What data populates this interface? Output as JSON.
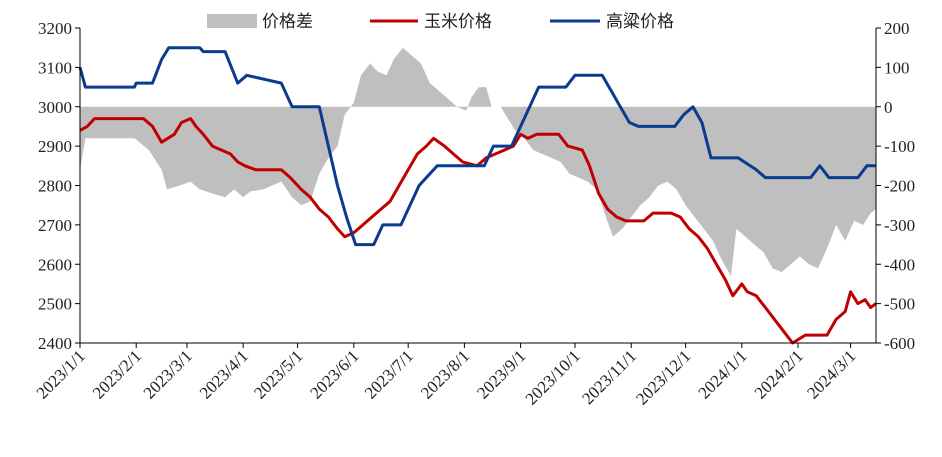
{
  "chart_data": {
    "type": "line",
    "legend_position": "top",
    "grid": false,
    "colors": {
      "spread": "#bfbfbf",
      "corn": "#c00000",
      "sorghum": "#0a3b8c"
    },
    "x_ticks": [
      "2023/1/1",
      "2023/2/1",
      "2023/3/1",
      "2023/4/1",
      "2023/5/1",
      "2023/6/1",
      "2023/7/1",
      "2023/8/1",
      "2023/9/1",
      "2023/10/1",
      "2023/11/1",
      "2023/12/1",
      "2024/1/1",
      "2024/2/1",
      "2024/3/1"
    ],
    "x_range": [
      "2023-01-01",
      "2024-03-15"
    ],
    "y_left": {
      "min": 2400,
      "max": 3200,
      "ticks": [
        2400,
        2500,
        2600,
        2700,
        2800,
        2900,
        3000,
        3100,
        3200
      ]
    },
    "y_right": {
      "min": -600,
      "max": 200,
      "ticks": [
        -600,
        -500,
        -400,
        -300,
        -200,
        -100,
        0,
        100,
        200
      ]
    },
    "series": [
      {
        "name": "价格差",
        "kind": "area",
        "axis": "right",
        "color": "#bfbfbf",
        "points": [
          [
            "2023-01-01",
            -160
          ],
          [
            "2023-01-04",
            -80
          ],
          [
            "2023-01-10",
            -80
          ],
          [
            "2023-01-31",
            -80
          ],
          [
            "2023-02-08",
            -110
          ],
          [
            "2023-02-15",
            -160
          ],
          [
            "2023-02-18",
            -210
          ],
          [
            "2023-02-25",
            -200
          ],
          [
            "2023-03-03",
            -190
          ],
          [
            "2023-03-08",
            -210
          ],
          [
            "2023-03-15",
            -220
          ],
          [
            "2023-03-22",
            -230
          ],
          [
            "2023-03-27",
            -210
          ],
          [
            "2023-04-01",
            -230
          ],
          [
            "2023-04-05",
            -215
          ],
          [
            "2023-04-12",
            -210
          ],
          [
            "2023-04-22",
            -190
          ],
          [
            "2023-04-28",
            -230
          ],
          [
            "2023-05-03",
            -250
          ],
          [
            "2023-05-08",
            -240
          ],
          [
            "2023-05-13",
            -170
          ],
          [
            "2023-05-18",
            -130
          ],
          [
            "2023-05-23",
            -100
          ],
          [
            "2023-05-27",
            -20
          ],
          [
            "2023-06-01",
            10
          ],
          [
            "2023-06-05",
            80
          ],
          [
            "2023-06-10",
            110
          ],
          [
            "2023-06-14",
            90
          ],
          [
            "2023-06-19",
            80
          ],
          [
            "2023-06-23",
            120
          ],
          [
            "2023-06-28",
            150
          ],
          [
            "2023-07-03",
            130
          ],
          [
            "2023-07-08",
            110
          ],
          [
            "2023-07-13",
            60
          ],
          [
            "2023-07-18",
            40
          ],
          [
            "2023-07-23",
            20
          ],
          [
            "2023-07-28",
            0
          ],
          [
            "2023-08-02",
            -10
          ],
          [
            "2023-08-05",
            25
          ],
          [
            "2023-08-09",
            50
          ],
          [
            "2023-08-13",
            50
          ],
          [
            "2023-08-16",
            0
          ],
          [
            "2023-08-21",
            0
          ],
          [
            "2023-08-25",
            -30
          ],
          [
            "2023-08-29",
            -60
          ],
          [
            "2023-09-03",
            -80
          ],
          [
            "2023-09-08",
            -110
          ],
          [
            "2023-09-13",
            -120
          ],
          [
            "2023-09-18",
            -130
          ],
          [
            "2023-09-23",
            -140
          ],
          [
            "2023-09-28",
            -170
          ],
          [
            "2023-10-03",
            -180
          ],
          [
            "2023-10-08",
            -190
          ],
          [
            "2023-10-13",
            -210
          ],
          [
            "2023-10-18",
            -280
          ],
          [
            "2023-10-22",
            -330
          ],
          [
            "2023-10-27",
            -310
          ],
          [
            "2023-11-01",
            -280
          ],
          [
            "2023-11-06",
            -250
          ],
          [
            "2023-11-11",
            -230
          ],
          [
            "2023-11-16",
            -200
          ],
          [
            "2023-11-21",
            -190
          ],
          [
            "2023-11-26",
            -210
          ],
          [
            "2023-12-01",
            -250
          ],
          [
            "2023-12-06",
            -280
          ],
          [
            "2023-12-11",
            -310
          ],
          [
            "2023-12-16",
            -340
          ],
          [
            "2023-12-21",
            -390
          ],
          [
            "2023-12-26",
            -430
          ],
          [
            "2023-12-29",
            -310
          ],
          [
            "2024-01-03",
            -330
          ],
          [
            "2024-01-08",
            -350
          ],
          [
            "2024-01-13",
            -370
          ],
          [
            "2024-01-18",
            -410
          ],
          [
            "2024-01-23",
            -420
          ],
          [
            "2024-01-28",
            -400
          ],
          [
            "2024-02-02",
            -380
          ],
          [
            "2024-02-07",
            -400
          ],
          [
            "2024-02-12",
            -410
          ],
          [
            "2024-02-17",
            -360
          ],
          [
            "2024-02-22",
            -300
          ],
          [
            "2024-02-27",
            -340
          ],
          [
            "2024-03-03",
            -290
          ],
          [
            "2024-03-08",
            -300
          ],
          [
            "2024-03-12",
            -270
          ],
          [
            "2024-03-15",
            -260
          ]
        ]
      },
      {
        "name": "玉米价格",
        "kind": "line",
        "axis": "left",
        "color": "#c00000",
        "points": [
          [
            "2023-01-01",
            2940
          ],
          [
            "2023-01-05",
            2950
          ],
          [
            "2023-01-09",
            2970
          ],
          [
            "2023-02-05",
            2970
          ],
          [
            "2023-02-10",
            2950
          ],
          [
            "2023-02-15",
            2910
          ],
          [
            "2023-02-22",
            2930
          ],
          [
            "2023-02-26",
            2960
          ],
          [
            "2023-03-03",
            2970
          ],
          [
            "2023-03-06",
            2950
          ],
          [
            "2023-03-10",
            2930
          ],
          [
            "2023-03-15",
            2900
          ],
          [
            "2023-03-25",
            2880
          ],
          [
            "2023-03-29",
            2860
          ],
          [
            "2023-04-02",
            2850
          ],
          [
            "2023-04-08",
            2840
          ],
          [
            "2023-04-22",
            2840
          ],
          [
            "2023-04-27",
            2820
          ],
          [
            "2023-05-03",
            2790
          ],
          [
            "2023-05-08",
            2770
          ],
          [
            "2023-05-13",
            2740
          ],
          [
            "2023-05-18",
            2720
          ],
          [
            "2023-05-23",
            2690
          ],
          [
            "2023-05-27",
            2670
          ],
          [
            "2023-06-01",
            2680
          ],
          [
            "2023-06-06",
            2700
          ],
          [
            "2023-06-11",
            2720
          ],
          [
            "2023-06-16",
            2740
          ],
          [
            "2023-06-21",
            2760
          ],
          [
            "2023-06-26",
            2800
          ],
          [
            "2023-07-01",
            2840
          ],
          [
            "2023-07-06",
            2880
          ],
          [
            "2023-07-11",
            2900
          ],
          [
            "2023-07-15",
            2920
          ],
          [
            "2023-07-21",
            2900
          ],
          [
            "2023-07-26",
            2880
          ],
          [
            "2023-07-31",
            2860
          ],
          [
            "2023-08-08",
            2850
          ],
          [
            "2023-08-13",
            2870
          ],
          [
            "2023-08-18",
            2880
          ],
          [
            "2023-08-23",
            2890
          ],
          [
            "2023-08-28",
            2900
          ],
          [
            "2023-09-01",
            2930
          ],
          [
            "2023-09-05",
            2920
          ],
          [
            "2023-09-10",
            2930
          ],
          [
            "2023-09-22",
            2930
          ],
          [
            "2023-09-27",
            2900
          ],
          [
            "2023-10-05",
            2890
          ],
          [
            "2023-10-09",
            2850
          ],
          [
            "2023-10-14",
            2780
          ],
          [
            "2023-10-19",
            2740
          ],
          [
            "2023-10-24",
            2720
          ],
          [
            "2023-10-29",
            2710
          ],
          [
            "2023-11-08",
            2710
          ],
          [
            "2023-11-13",
            2730
          ],
          [
            "2023-11-23",
            2730
          ],
          [
            "2023-11-28",
            2720
          ],
          [
            "2023-12-03",
            2690
          ],
          [
            "2023-12-08",
            2670
          ],
          [
            "2023-12-13",
            2640
          ],
          [
            "2023-12-18",
            2600
          ],
          [
            "2023-12-23",
            2560
          ],
          [
            "2023-12-27",
            2520
          ],
          [
            "2024-01-01",
            2550
          ],
          [
            "2024-01-04",
            2530
          ],
          [
            "2024-01-09",
            2520
          ],
          [
            "2024-01-14",
            2490
          ],
          [
            "2024-01-19",
            2460
          ],
          [
            "2024-01-24",
            2430
          ],
          [
            "2024-01-29",
            2400
          ],
          [
            "2024-02-05",
            2420
          ],
          [
            "2024-02-17",
            2420
          ],
          [
            "2024-02-22",
            2460
          ],
          [
            "2024-02-27",
            2480
          ],
          [
            "2024-03-01",
            2530
          ],
          [
            "2024-03-05",
            2500
          ],
          [
            "2024-03-09",
            2510
          ],
          [
            "2024-03-12",
            2490
          ],
          [
            "2024-03-15",
            2500
          ]
        ]
      },
      {
        "name": "高粱价格",
        "kind": "line",
        "axis": "left",
        "color": "#0a3b8c",
        "points": [
          [
            "2023-01-01",
            3100
          ],
          [
            "2023-01-04",
            3050
          ],
          [
            "2023-01-31",
            3050
          ],
          [
            "2023-02-01",
            3060
          ],
          [
            "2023-02-10",
            3060
          ],
          [
            "2023-02-15",
            3120
          ],
          [
            "2023-02-19",
            3150
          ],
          [
            "2023-03-08",
            3150
          ],
          [
            "2023-03-10",
            3140
          ],
          [
            "2023-03-22",
            3140
          ],
          [
            "2023-03-29",
            3060
          ],
          [
            "2023-04-03",
            3080
          ],
          [
            "2023-04-22",
            3060
          ],
          [
            "2023-04-28",
            3000
          ],
          [
            "2023-05-13",
            3000
          ],
          [
            "2023-05-18",
            2900
          ],
          [
            "2023-05-23",
            2800
          ],
          [
            "2023-05-28",
            2720
          ],
          [
            "2023-06-02",
            2650
          ],
          [
            "2023-06-12",
            2650
          ],
          [
            "2023-06-17",
            2700
          ],
          [
            "2023-06-27",
            2700
          ],
          [
            "2023-07-02",
            2750
          ],
          [
            "2023-07-07",
            2800
          ],
          [
            "2023-07-17",
            2850
          ],
          [
            "2023-08-12",
            2850
          ],
          [
            "2023-08-17",
            2900
          ],
          [
            "2023-08-27",
            2900
          ],
          [
            "2023-09-01",
            2950
          ],
          [
            "2023-09-06",
            3000
          ],
          [
            "2023-09-11",
            3050
          ],
          [
            "2023-09-26",
            3050
          ],
          [
            "2023-10-01",
            3080
          ],
          [
            "2023-10-16",
            3080
          ],
          [
            "2023-10-21",
            3040
          ],
          [
            "2023-10-26",
            3000
          ],
          [
            "2023-10-31",
            2960
          ],
          [
            "2023-11-05",
            2950
          ],
          [
            "2023-11-25",
            2950
          ],
          [
            "2023-11-30",
            2980
          ],
          [
            "2023-12-05",
            3000
          ],
          [
            "2023-12-10",
            2960
          ],
          [
            "2023-12-15",
            2870
          ],
          [
            "2023-12-30",
            2870
          ],
          [
            "2024-01-09",
            2840
          ],
          [
            "2024-01-14",
            2820
          ],
          [
            "2024-02-08",
            2820
          ],
          [
            "2024-02-13",
            2850
          ],
          [
            "2024-02-18",
            2820
          ],
          [
            "2024-03-05",
            2820
          ],
          [
            "2024-03-10",
            2850
          ],
          [
            "2024-03-15",
            2850
          ]
        ]
      }
    ]
  }
}
